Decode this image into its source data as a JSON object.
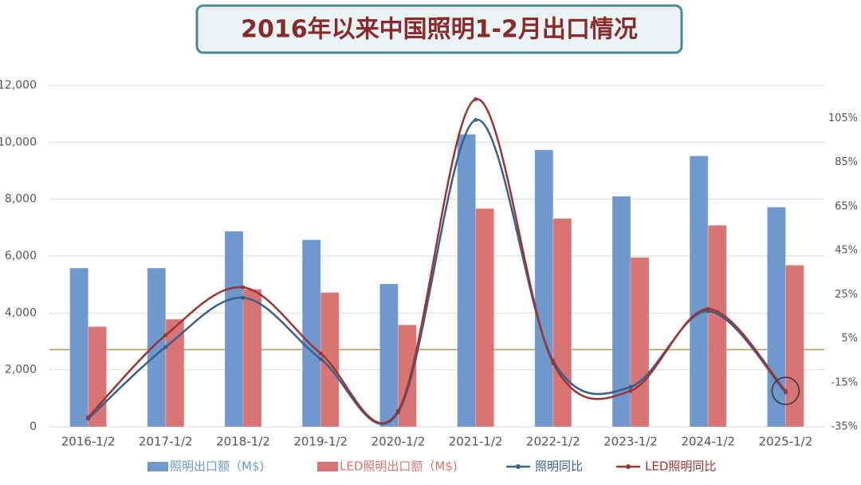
{
  "chart_data": {
    "type": "bar_line",
    "title": "2016年以来中国照明1-2月出口情况",
    "categories": [
      "2016-1/2",
      "2017-1/2",
      "2018-1/2",
      "2019-1/2",
      "2020-1/2",
      "2021-1/2",
      "2022-1/2",
      "2023-1/2",
      "2024-1/2",
      "2025-1/2"
    ],
    "series": [
      {
        "name": "照明出口额（M$)",
        "type": "bar",
        "color": "#6f98cc",
        "values": [
          5580,
          5580,
          6870,
          6570,
          5020,
          10280,
          9730,
          8100,
          9520,
          7720
        ]
      },
      {
        "name": "LED照明出口额（M$)",
        "type": "bar",
        "color": "#d87474",
        "values": [
          3520,
          3780,
          4830,
          4720,
          3580,
          7670,
          7320,
          5950,
          7080,
          5680
        ]
      },
      {
        "name": "照明同比",
        "type": "line",
        "axis": "y2",
        "color": "#3a5f8a",
        "values": [
          -31.4,
          1.2,
          23.6,
          -4.2,
          -28.5,
          104.3,
          -5,
          -16.9,
          17.5,
          -19.4
        ]
      },
      {
        "name": "LED照明同比",
        "type": "line",
        "axis": "y2",
        "color": "#9b3535",
        "values": [
          -30.7,
          6.6,
          28.3,
          -1.7,
          -27.8,
          113.7,
          -6.1,
          -18.7,
          18.5,
          -18.7
        ]
      }
    ],
    "ylim": [
      0,
      12000
    ],
    "yticks": [
      0,
      {
        "value": 2000,
        "label": "2,000"
      },
      {
        "value": 4000,
        "label": "4,000"
      },
      {
        "value": 6000,
        "label": "6,000"
      },
      {
        "value": 8000,
        "label": "8,000"
      },
      {
        "value": 10000,
        "label": "10,000"
      },
      {
        "value": 12000,
        "label": "12,000"
      }
    ],
    "y2lim": [
      -35,
      120
    ],
    "y2ticks": [
      {
        "value": -35,
        "label": "-35%"
      },
      {
        "value": -15,
        "label": "-15%"
      },
      {
        "value": 5,
        "label": "5%"
      },
      {
        "value": 25,
        "label": "25%"
      },
      {
        "value": 45,
        "label": "45%"
      },
      {
        "value": 65,
        "label": "65%"
      },
      {
        "value": 85,
        "label": "85%"
      },
      {
        "value": 105,
        "label": "105%"
      }
    ],
    "grid": true
  }
}
